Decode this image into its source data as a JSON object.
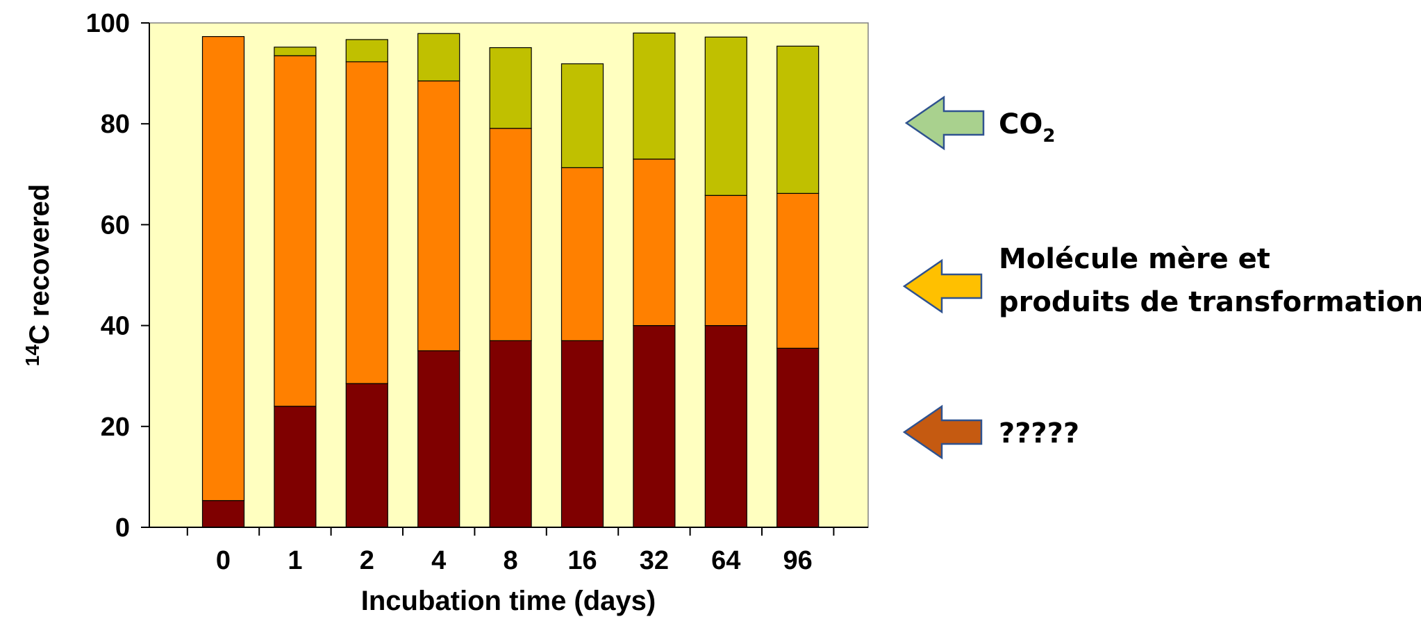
{
  "chart_data": {
    "type": "bar",
    "stacked": true,
    "categories": [
      "0",
      "1",
      "2",
      "4",
      "8",
      "16",
      "32",
      "64",
      "96"
    ],
    "series": [
      {
        "key": "unknown",
        "color": "#7f0000",
        "values": [
          5.3,
          24,
          28.5,
          35,
          37,
          37,
          40,
          40,
          35.5
        ]
      },
      {
        "key": "parent",
        "color": "#ff8000",
        "values": [
          92,
          69.5,
          63.8,
          53.5,
          42.1,
          34.3,
          33,
          25.8,
          30.7
        ]
      },
      {
        "key": "co2",
        "color": "#c0c000",
        "values": [
          0,
          1.7,
          4.4,
          9.4,
          16,
          20.6,
          25,
          31.4,
          29.2
        ]
      }
    ],
    "ylim": [
      0,
      100
    ],
    "yticks": [
      0,
      20,
      40,
      60,
      80,
      100
    ],
    "xlabel": "Incubation time (days)",
    "ylabel": {
      "sup": "14",
      "text": "C recovered"
    },
    "plot_background": "#ffffc0",
    "legend": [
      {
        "series": "co2",
        "label_main": "CO",
        "label_sub": "2",
        "arrow_color": "#a9d18e"
      },
      {
        "series": "parent",
        "lines": [
          "Molécule mère et",
          "produits de transformation"
        ],
        "arrow_color": "#ffc000"
      },
      {
        "series": "unknown",
        "label_main": "?????",
        "arrow_color": "#c55a11"
      }
    ]
  }
}
